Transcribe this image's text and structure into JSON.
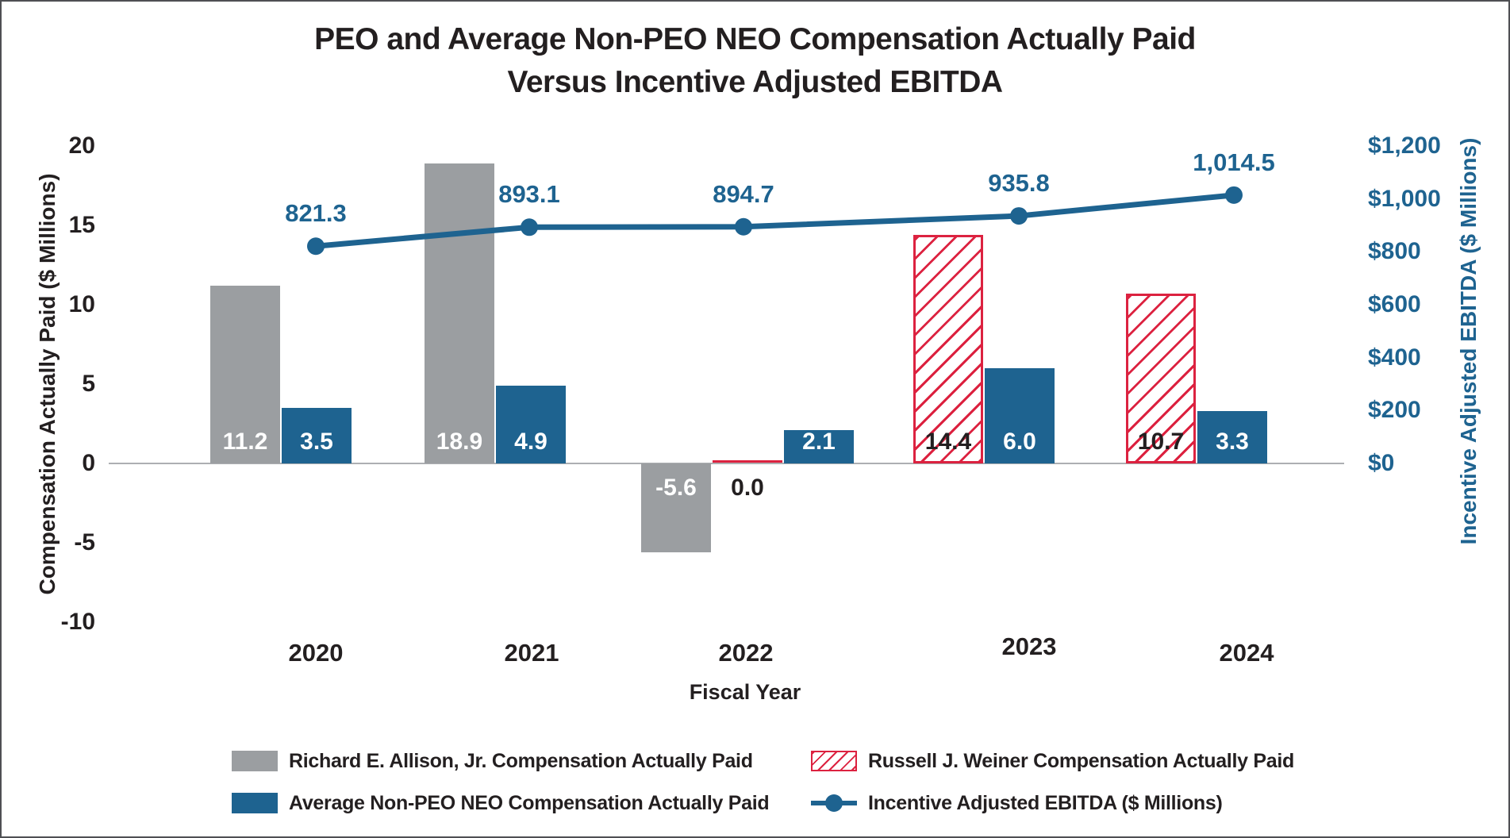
{
  "title": {
    "line1": "PEO and Average Non-PEO NEO Compensation Actually Paid",
    "line2": "Versus Incentive Adjusted EBITDA"
  },
  "chart_data": {
    "type": "combo-bar-line",
    "categories": [
      "2020",
      "2021",
      "2022",
      "2023",
      "2024"
    ],
    "bar_series": [
      {
        "name": "Richard E. Allison, Jr. Compensation Actually Paid",
        "color_key": "gray",
        "values": [
          11.2,
          18.9,
          -5.6,
          null,
          null
        ],
        "labels": [
          "11.2",
          "18.9",
          "-5.6",
          null,
          null
        ]
      },
      {
        "name": "Russell J. Weiner Compensation Actually Paid",
        "color_key": "red_hatch",
        "values": [
          null,
          null,
          0.0,
          14.4,
          10.7
        ],
        "labels": [
          null,
          null,
          "0.0",
          "14.4",
          "10.7"
        ]
      },
      {
        "name": "Average Non-PEO NEO Compensation Actually Paid",
        "color_key": "blue",
        "values": [
          3.5,
          4.9,
          2.1,
          6.0,
          3.3
        ],
        "labels": [
          "3.5",
          "4.9",
          "2.1",
          "6.0",
          "3.3"
        ]
      }
    ],
    "line_series": {
      "name": "Incentive Adjusted EBITDA ($ Millions)",
      "values": [
        821.3,
        893.1,
        894.7,
        935.8,
        1014.5
      ],
      "labels": [
        "821.3",
        "893.1",
        "894.7",
        "935.8",
        "1,014.5"
      ]
    },
    "left_axis": {
      "title": "Compensation Actually Paid ($ Millions)",
      "ticks": [
        "20",
        "15",
        "10",
        "5",
        "0",
        "-5",
        "-10"
      ],
      "min": -10,
      "max": 20
    },
    "right_axis": {
      "title": "Incentive Adjusted EBITDA ($ Millions)",
      "ticks": [
        "$1,200",
        "$1,000",
        "$800",
        "$600",
        "$400",
        "$200",
        "$0"
      ],
      "min": 0,
      "max": 1200
    },
    "x_axis": {
      "title": "Fiscal Year"
    },
    "legend": {
      "items": [
        {
          "swatch": "gray",
          "label": "Richard E. Allison, Jr. Compensation Actually Paid"
        },
        {
          "swatch": "red-hatch",
          "label": "Russell J. Weiner Compensation Actually Paid"
        },
        {
          "swatch": "blue",
          "label": "Average Non-PEO NEO Compensation Actually Paid"
        },
        {
          "swatch": "line",
          "label": "Incentive Adjusted EBITDA ($ Millions)"
        }
      ]
    },
    "colors": {
      "blue": "#1e6390",
      "gray": "#9b9ea1",
      "red": "#dc2240",
      "axis_line": "#adafb2",
      "text": "#231f20",
      "bar_label_light": "#ffffff"
    },
    "layout_hints": {
      "legend_position": "bottom",
      "grid": "off",
      "bar_label_position": "inside-base",
      "line_label_position": "above-point"
    }
  }
}
